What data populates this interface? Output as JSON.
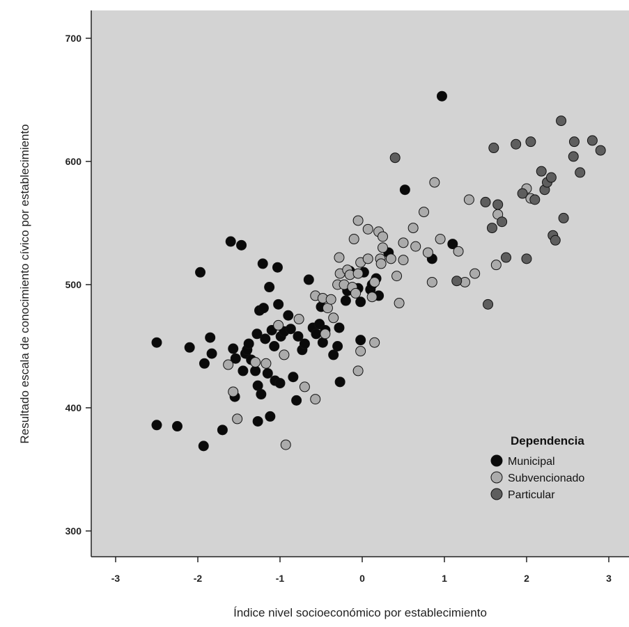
{
  "chart_data": {
    "type": "scatter",
    "xlabel": "Índice nivel socioeconómico por establecimiento",
    "ylabel": "Resultado escala de conocimiento cívico por establecimiento",
    "xlim": [
      -3.4,
      3.2
    ],
    "ylim": [
      270,
      722
    ],
    "x_ticks": [
      -3,
      -2,
      -1,
      0,
      1,
      2,
      3
    ],
    "y_ticks": [
      300,
      400,
      500,
      600,
      700
    ],
    "x_tick_labels": [
      "-3",
      "-2",
      "-1",
      "0",
      "1",
      "2",
      "3"
    ],
    "y_tick_labels": [
      "300",
      "400",
      "500",
      "600",
      "700"
    ],
    "plot_background": "#d3d3d3",
    "grid": false,
    "legend_position": "bottom-right",
    "legend_title": "Dependencia",
    "series": [
      {
        "name": "Municipal",
        "color": "#0a0a0a",
        "points": [
          [
            -2.5,
            453
          ],
          [
            -2.5,
            386
          ],
          [
            -2.25,
            385
          ],
          [
            -2.1,
            449
          ],
          [
            -1.97,
            510
          ],
          [
            -1.93,
            369
          ],
          [
            -1.92,
            436
          ],
          [
            -1.85,
            457
          ],
          [
            -1.83,
            444
          ],
          [
            -1.7,
            382
          ],
          [
            -1.6,
            535
          ],
          [
            -1.57,
            448
          ],
          [
            -1.55,
            409
          ],
          [
            -1.54,
            440
          ],
          [
            -1.47,
            532
          ],
          [
            -1.45,
            430
          ],
          [
            -1.42,
            444
          ],
          [
            -1.4,
            447
          ],
          [
            -1.38,
            452
          ],
          [
            -1.35,
            439
          ],
          [
            -1.3,
            430
          ],
          [
            -1.28,
            460
          ],
          [
            -1.27,
            418
          ],
          [
            -1.27,
            389
          ],
          [
            -1.25,
            479
          ],
          [
            -1.23,
            411
          ],
          [
            -1.21,
            517
          ],
          [
            -1.2,
            481
          ],
          [
            -1.18,
            456
          ],
          [
            -1.15,
            428
          ],
          [
            -1.13,
            498
          ],
          [
            -1.12,
            393
          ],
          [
            -1.1,
            463
          ],
          [
            -1.07,
            450
          ],
          [
            -1.06,
            422
          ],
          [
            -1.03,
            514
          ],
          [
            -1.02,
            484
          ],
          [
            -1.0,
            420
          ],
          [
            -0.99,
            458
          ],
          [
            -0.95,
            462
          ],
          [
            -0.9,
            475
          ],
          [
            -0.87,
            464
          ],
          [
            -0.84,
            425
          ],
          [
            -0.8,
            406
          ],
          [
            -0.78,
            458
          ],
          [
            -0.73,
            447
          ],
          [
            -0.7,
            452
          ],
          [
            -0.65,
            504
          ],
          [
            -0.6,
            465
          ],
          [
            -0.56,
            460
          ],
          [
            -0.52,
            468
          ],
          [
            -0.5,
            482
          ],
          [
            -0.48,
            453
          ],
          [
            -0.45,
            463
          ],
          [
            -0.35,
            443
          ],
          [
            -0.3,
            450
          ],
          [
            -0.28,
            465
          ],
          [
            -0.27,
            421
          ],
          [
            -0.2,
            487
          ],
          [
            -0.18,
            495
          ],
          [
            -0.15,
            511
          ],
          [
            -0.05,
            497
          ],
          [
            -0.02,
            486
          ],
          [
            -0.02,
            455
          ],
          [
            0.02,
            510
          ],
          [
            0.1,
            496
          ],
          [
            0.12,
            500
          ],
          [
            0.17,
            505
          ],
          [
            0.2,
            491
          ],
          [
            0.32,
            526
          ],
          [
            0.52,
            577
          ],
          [
            0.85,
            521
          ],
          [
            0.97,
            653
          ],
          [
            1.1,
            533
          ]
        ]
      },
      {
        "name": "Subvencionado",
        "color": "#ababab",
        "points": [
          [
            -1.63,
            435
          ],
          [
            -1.57,
            413
          ],
          [
            -1.52,
            391
          ],
          [
            -1.3,
            437
          ],
          [
            -1.17,
            436
          ],
          [
            -1.02,
            467
          ],
          [
            -0.95,
            443
          ],
          [
            -0.93,
            370
          ],
          [
            -0.77,
            472
          ],
          [
            -0.7,
            417
          ],
          [
            -0.57,
            407
          ],
          [
            -0.57,
            491
          ],
          [
            -0.48,
            489
          ],
          [
            -0.45,
            460
          ],
          [
            -0.42,
            481
          ],
          [
            -0.38,
            488
          ],
          [
            -0.35,
            473
          ],
          [
            -0.3,
            500
          ],
          [
            -0.28,
            522
          ],
          [
            -0.27,
            509
          ],
          [
            -0.22,
            500
          ],
          [
            -0.18,
            512
          ],
          [
            -0.15,
            508
          ],
          [
            -0.12,
            498
          ],
          [
            -0.1,
            537
          ],
          [
            -0.08,
            493
          ],
          [
            -0.05,
            552
          ],
          [
            -0.05,
            509
          ],
          [
            -0.05,
            430
          ],
          [
            -0.02,
            518
          ],
          [
            -0.02,
            446
          ],
          [
            0.07,
            545
          ],
          [
            0.07,
            521
          ],
          [
            0.12,
            490
          ],
          [
            0.15,
            502
          ],
          [
            0.15,
            453
          ],
          [
            0.2,
            543
          ],
          [
            0.22,
            521
          ],
          [
            0.23,
            517
          ],
          [
            0.25,
            539
          ],
          [
            0.25,
            530
          ],
          [
            0.35,
            521
          ],
          [
            0.42,
            507
          ],
          [
            0.45,
            485
          ],
          [
            0.5,
            534
          ],
          [
            0.5,
            520
          ],
          [
            0.62,
            546
          ],
          [
            0.65,
            531
          ],
          [
            0.75,
            559
          ],
          [
            0.8,
            526
          ],
          [
            0.85,
            502
          ],
          [
            0.88,
            583
          ],
          [
            0.95,
            537
          ],
          [
            1.17,
            527
          ],
          [
            1.25,
            502
          ],
          [
            1.3,
            569
          ],
          [
            1.37,
            509
          ],
          [
            1.63,
            516
          ],
          [
            1.65,
            557
          ],
          [
            2.0,
            578
          ],
          [
            2.05,
            570
          ]
        ]
      },
      {
        "name": "Particular",
        "color": "#5e5e5e",
        "points": [
          [
            0.4,
            603
          ],
          [
            1.15,
            503
          ],
          [
            1.5,
            567
          ],
          [
            1.53,
            484
          ],
          [
            1.58,
            546
          ],
          [
            1.6,
            611
          ],
          [
            1.65,
            565
          ],
          [
            1.7,
            551
          ],
          [
            1.75,
            522
          ],
          [
            1.87,
            614
          ],
          [
            1.95,
            574
          ],
          [
            2.0,
            521
          ],
          [
            2.05,
            616
          ],
          [
            2.1,
            569
          ],
          [
            2.18,
            592
          ],
          [
            2.22,
            577
          ],
          [
            2.25,
            583
          ],
          [
            2.3,
            587
          ],
          [
            2.32,
            540
          ],
          [
            2.35,
            536
          ],
          [
            2.42,
            633
          ],
          [
            2.45,
            554
          ],
          [
            2.57,
            604
          ],
          [
            2.58,
            616
          ],
          [
            2.65,
            591
          ],
          [
            2.8,
            617
          ],
          [
            2.9,
            609
          ]
        ]
      }
    ]
  }
}
